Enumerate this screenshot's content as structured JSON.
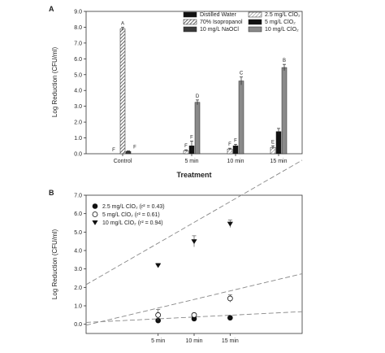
{
  "chart_data": [
    {
      "panel_label": "A",
      "type": "bar",
      "xlabel": "Treatment",
      "ylabel": "Log Reduction (CFU/ml)",
      "ylim": [
        0,
        9
      ],
      "yticks": [
        "0.0",
        "1.0",
        "2.0",
        "3.0",
        "4.0",
        "5.0",
        "6.0",
        "7.0",
        "8.0",
        "9.0"
      ],
      "categories": [
        "Control",
        "5 min",
        "10 min",
        "15 min"
      ],
      "legend_placement": "top-right",
      "series": [
        {
          "name": "Distilled Water",
          "pattern": "solid-black",
          "values": [
            0.0,
            null,
            null,
            null
          ],
          "errors": [
            0.0,
            null,
            null,
            null
          ],
          "letters": [
            "F",
            "",
            "",
            ""
          ]
        },
        {
          "name": "70% Isopropanol",
          "pattern": "hatch",
          "values": [
            7.9,
            null,
            null,
            null
          ],
          "errors": [
            0.1,
            null,
            null,
            null
          ],
          "letters": [
            "A",
            "",
            "",
            ""
          ]
        },
        {
          "name": "10 mg/L NaOCl",
          "pattern": "dark-gray",
          "values": [
            0.15,
            null,
            null,
            null
          ],
          "errors": [
            0.03,
            null,
            null,
            null
          ],
          "letters": [
            "F",
            "",
            "",
            ""
          ]
        },
        {
          "name": "2.5 mg/L ClO₂",
          "pattern": "hatch-light",
          "values": [
            null,
            0.2,
            0.3,
            0.4
          ],
          "errors": [
            null,
            0.05,
            0.05,
            0.1
          ],
          "letters": [
            "",
            "F",
            "F",
            "E"
          ]
        },
        {
          "name": "5 mg/L ClO₂",
          "pattern": "solid-black",
          "values": [
            null,
            0.5,
            0.5,
            1.4
          ],
          "errors": [
            null,
            0.3,
            0.1,
            0.2
          ],
          "letters": [
            "",
            "F",
            "F",
            ""
          ]
        },
        {
          "name": "10 mg/L ClO₂",
          "pattern": "mid-gray",
          "values": [
            null,
            3.25,
            4.6,
            5.45
          ],
          "errors": [
            null,
            0.15,
            0.25,
            0.2
          ],
          "letters": [
            "",
            "D",
            "C",
            "B"
          ]
        }
      ]
    },
    {
      "panel_label": "B",
      "type": "scatter",
      "ylabel": "Log Reduction (CFU/ml)",
      "ylim": [
        -0.5,
        7.0
      ],
      "yticks": [
        "0.0",
        "1.0",
        "2.0",
        "3.0",
        "4.0",
        "5.0",
        "6.0",
        "7.0"
      ],
      "categories": [
        "5 min",
        "10 min",
        "15 min"
      ],
      "legend_placement": "top-left",
      "series": [
        {
          "name": "2.5 mg/L ClO₂ (r² = 0.43)",
          "marker": "filled-circle",
          "values": [
            0.2,
            0.3,
            0.35
          ],
          "errors": [
            0.05,
            0.05,
            0.05
          ],
          "trend_at_x0": 0.1,
          "trend_slope": 0.0195
        },
        {
          "name": "5 mg/L ClO₂ (r² = 0.61)",
          "marker": "open-circle",
          "values": [
            0.5,
            0.5,
            1.4
          ],
          "errors": [
            0.3,
            0.1,
            0.2
          ],
          "trend_at_x0": -0.05,
          "trend_slope": 0.093
        },
        {
          "name": "10 mg/L ClO₂ (r² = 0.94)",
          "marker": "filled-triangle",
          "values": [
            3.2,
            4.5,
            5.45
          ],
          "errors": [
            0.1,
            0.3,
            0.2
          ],
          "trend_at_x0": 2.15,
          "trend_slope": 0.225
        }
      ]
    }
  ]
}
